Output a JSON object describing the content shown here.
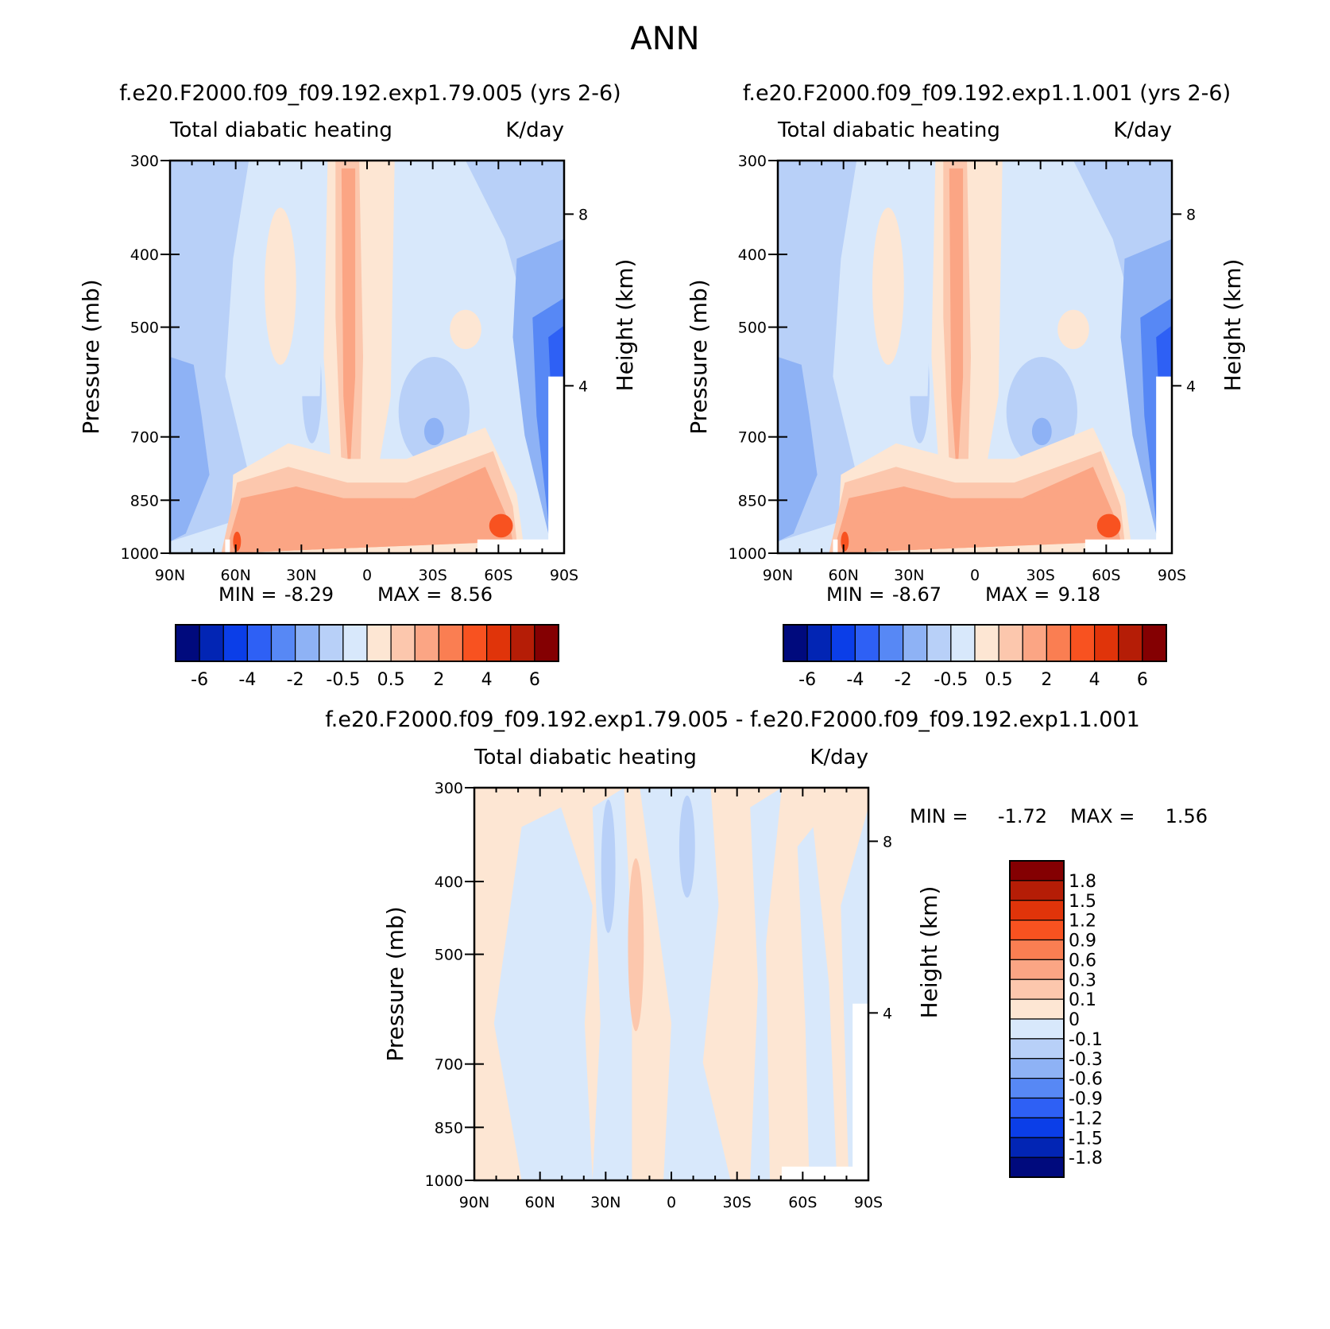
{
  "figure_title": "ANN",
  "tick_labels": {
    "lat": [
      "90N",
      "60N",
      "30N",
      "0",
      "30S",
      "60S",
      "90S"
    ],
    "pressure": [
      "300",
      "400",
      "500",
      "700",
      "850",
      "1000"
    ],
    "height": [
      "8",
      "4"
    ]
  },
  "chart_data": [
    {
      "type": "heatmap",
      "run_title": "f.e20.F2000.f09_f09.192.exp1.79.005 (yrs 2-6)",
      "title": "Total diabatic heating",
      "units": "K/day",
      "xlabel": "",
      "ylabel": "Pressure (mb)",
      "ylabel_right": "Height (km)",
      "x_range": [
        "90N",
        "90S"
      ],
      "y_range_mb": [
        1000,
        300
      ],
      "min_label": "MIN =",
      "max_label": "MAX =",
      "min": "-8.29",
      "max": "8.56",
      "colorbar_levels": [
        "-6",
        "-4",
        "-2",
        "-0.5",
        "0.5",
        "2",
        "4",
        "6"
      ],
      "colorbar_colors": [
        "#000a7d",
        "#0225b4",
        "#0b3ee8",
        "#2e60f5",
        "#5788f5",
        "#8eb2f5",
        "#b8d0f8",
        "#d8e8fb",
        "#fde6d3",
        "#fcc7ad",
        "#fba584",
        "#fa7e52",
        "#f85220",
        "#e0340a",
        "#b51d06",
        "#840002"
      ],
      "colorbar_placement": "bottom"
    },
    {
      "type": "heatmap",
      "run_title": "f.e20.F2000.f09_f09.192.exp1.1.001 (yrs 2-6)",
      "title": "Total diabatic heating",
      "units": "K/day",
      "xlabel": "",
      "ylabel": "Pressure (mb)",
      "ylabel_right": "Height (km)",
      "x_range": [
        "90N",
        "90S"
      ],
      "y_range_mb": [
        1000,
        300
      ],
      "min_label": "MIN =",
      "max_label": "MAX =",
      "min": "-8.67",
      "max": "9.18",
      "colorbar_levels": [
        "-6",
        "-4",
        "-2",
        "-0.5",
        "0.5",
        "2",
        "4",
        "6"
      ],
      "colorbar_colors": [
        "#000a7d",
        "#0225b4",
        "#0b3ee8",
        "#2e60f5",
        "#5788f5",
        "#8eb2f5",
        "#b8d0f8",
        "#d8e8fb",
        "#fde6d3",
        "#fcc7ad",
        "#fba584",
        "#fa7e52",
        "#f85220",
        "#e0340a",
        "#b51d06",
        "#840002"
      ],
      "colorbar_placement": "bottom"
    },
    {
      "type": "heatmap",
      "run_title": "f.e20.F2000.f09_f09.192.exp1.79.005 - f.e20.F2000.f09_f09.192.exp1.1.001",
      "title": "Total diabatic heating",
      "units": "K/day",
      "xlabel": "",
      "ylabel": "Pressure (mb)",
      "ylabel_right": "Height (km)",
      "x_range": [
        "90N",
        "90S"
      ],
      "y_range_mb": [
        1000,
        300
      ],
      "min_label": "MIN =",
      "max_label": "MAX =",
      "min": "-1.72",
      "max": "1.56",
      "colorbar_levels": [
        "1.8",
        "1.5",
        "1.2",
        "0.9",
        "0.6",
        "0.3",
        "0.1",
        "0",
        "-0.1",
        "-0.3",
        "-0.6",
        "-0.9",
        "-1.2",
        "-1.5",
        "-1.8"
      ],
      "colorbar_colors": [
        "#840002",
        "#b51d06",
        "#e0340a",
        "#f85220",
        "#fa7e52",
        "#fba584",
        "#fcc7ad",
        "#fde6d3",
        "#d8e8fb",
        "#b8d0f8",
        "#8eb2f5",
        "#5788f5",
        "#2e60f5",
        "#0b3ee8",
        "#0225b4",
        "#000a7d"
      ],
      "colorbar_placement": "right"
    }
  ]
}
